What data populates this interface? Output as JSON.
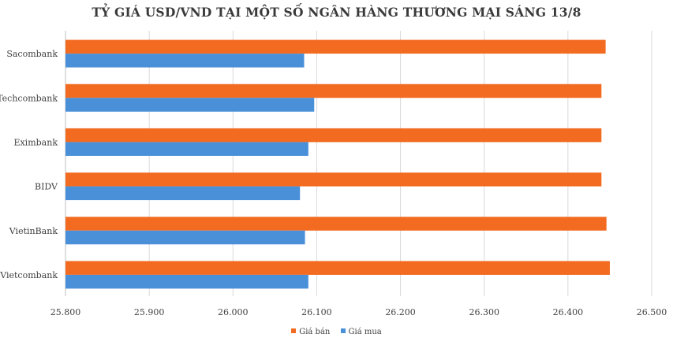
{
  "colors": {
    "sell": "#F26B21",
    "buy": "#4A90D9",
    "grid": "#D9D9D9",
    "axis": "#BFBFBF"
  },
  "chart_data": {
    "type": "bar",
    "orientation": "horizontal",
    "title": "TỶ GIÁ USD/VND TẠI MỘT SỐ NGÂN HÀNG THƯƠNG MẠI SÁNG 13/8",
    "categories": [
      "Sacombank",
      "Techcombank",
      "Eximbank",
      "BIDV",
      "VietinBank",
      "Vietcombank"
    ],
    "series": [
      {
        "name": "Giá bán",
        "values": [
          26445,
          26440,
          26440,
          26440,
          26446,
          26450
        ]
      },
      {
        "name": "Giá mua",
        "values": [
          26085,
          26097,
          26090,
          26080,
          26086,
          26090
        ]
      }
    ],
    "xlim": [
      25800,
      26500
    ],
    "xticks": [
      25800,
      25900,
      26000,
      26100,
      26200,
      26300,
      26400,
      26500
    ],
    "xtick_labels": [
      "25.800",
      "25.900",
      "26.000",
      "26.100",
      "26.200",
      "26.300",
      "26.400",
      "26.500"
    ],
    "grid": true,
    "legend_position": "bottom"
  }
}
